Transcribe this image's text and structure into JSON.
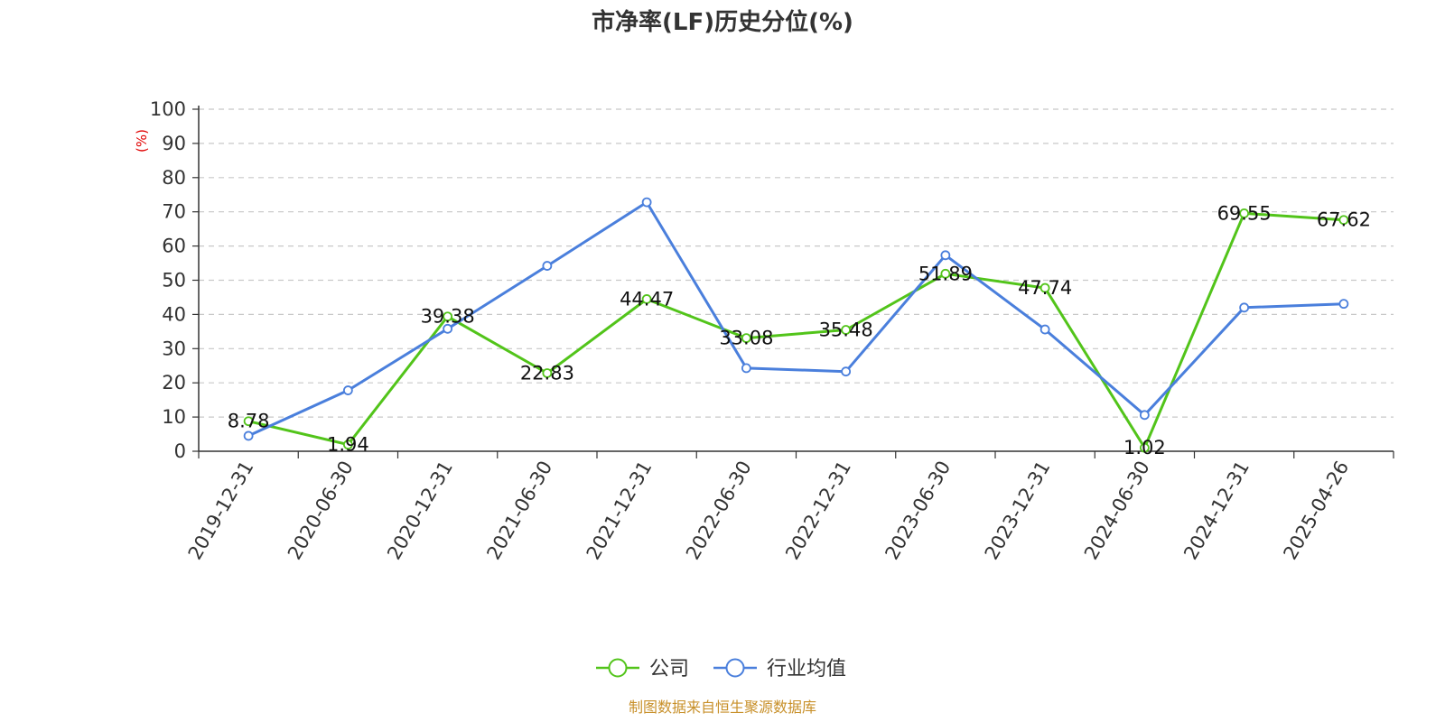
{
  "chart_data": {
    "type": "line",
    "title": "市净率(LF)历史分位(%)",
    "ylabel": "(%)",
    "ylim": [
      0,
      100
    ],
    "yticks": [
      0,
      10,
      20,
      30,
      40,
      50,
      60,
      70,
      80,
      90,
      100
    ],
    "grid": true,
    "legend_position": "bottom-center",
    "categories": [
      "2019-12-31",
      "2020-06-30",
      "2020-12-31",
      "2021-06-30",
      "2021-12-31",
      "2022-06-30",
      "2022-12-31",
      "2023-06-30",
      "2023-12-31",
      "2024-06-30",
      "2024-12-31",
      "2025-04-26"
    ],
    "series": [
      {
        "name": "公司",
        "color": "#52c41a",
        "values": [
          8.78,
          1.94,
          39.38,
          22.83,
          44.47,
          33.08,
          35.48,
          51.89,
          47.74,
          1.02,
          69.55,
          67.62
        ],
        "labels": [
          "8.78",
          "1.94",
          "39.38",
          "22.83",
          "44.47",
          "33.08",
          "35.48",
          "51.89",
          "47.74",
          "1.02",
          "69.55",
          "67.62"
        ]
      },
      {
        "name": "行业均值",
        "color": "#4a7fdc",
        "values": [
          4.5,
          17.8,
          35.8,
          54.2,
          72.8,
          24.3,
          23.3,
          57.3,
          35.6,
          10.6,
          42.0,
          43.1
        ]
      }
    ],
    "source": "制图数据来自恒生聚源数据库"
  }
}
